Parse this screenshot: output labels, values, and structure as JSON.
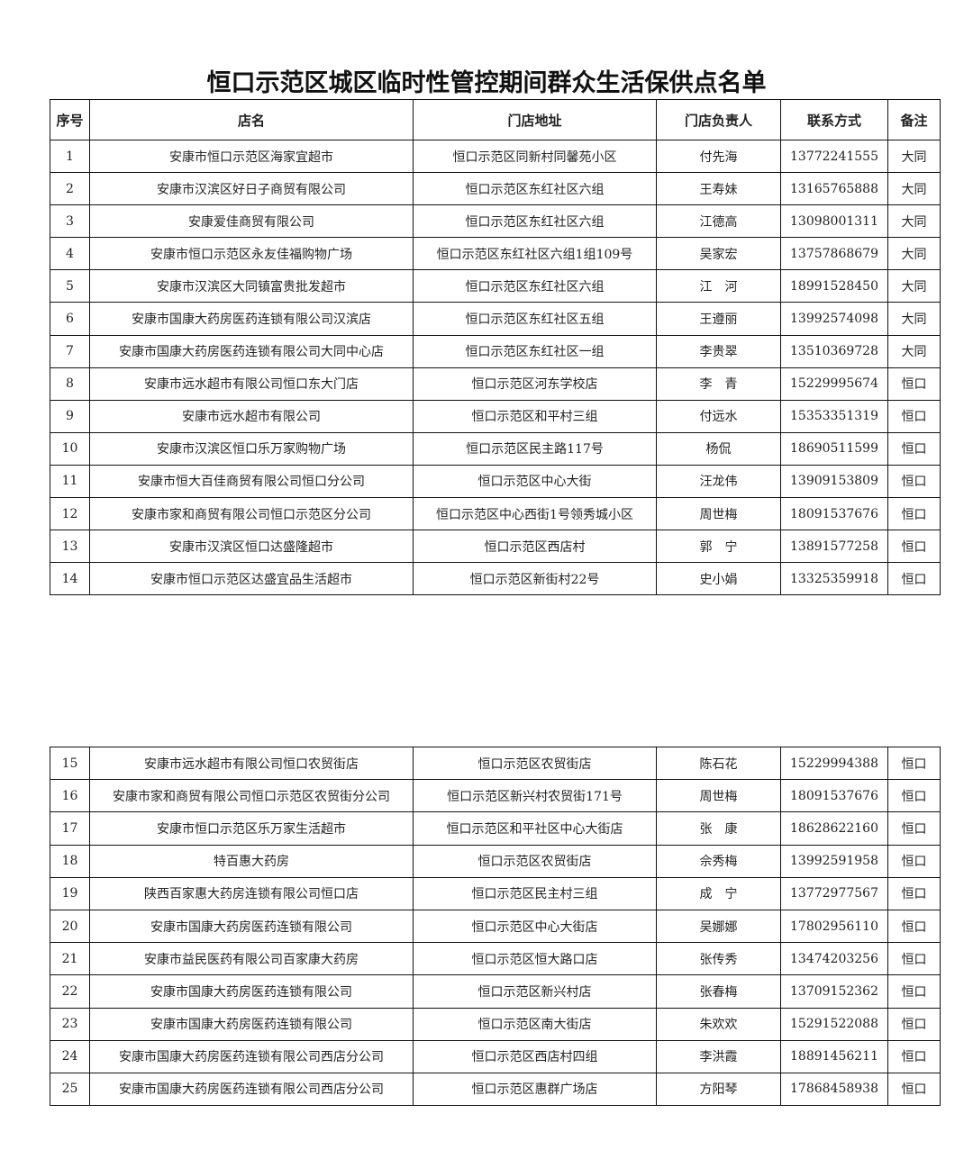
{
  "title": "恒口示范区城区临时性管控期间群众生活保供点名单",
  "header": [
    "序号",
    "店名",
    "门店地址",
    "门店负责人",
    "联系方式",
    "备注"
  ],
  "table1": {
    "rows": [
      [
        1,
        "安康市恒口示范区海家宜超市",
        "恒口示范区同新村同馨苑小区",
        "付先海",
        "13772241555",
        "大同"
      ],
      [
        2,
        "安康市汉滨区好日子商贸有限公司",
        "恒口示范区东红社区六组",
        "王寿妹",
        "13165765888",
        "大同"
      ],
      [
        3,
        "安康爱佳商贸有限公司",
        "恒口示范区东红社区六组",
        "江德高",
        "13098001311",
        "大同"
      ],
      [
        4,
        "安康市恒口示范区永友佳福购物广场",
        "恒口示范区东红社区六组1组109号",
        "吴家宏",
        "13757868679",
        "大同"
      ],
      [
        5,
        "安康市汉滨区大同镇富贵批发超市",
        "恒口示范区东红社区六组",
        "江　河",
        "18991528450",
        "大同"
      ],
      [
        6,
        "安康市国康大药房医药连锁有限公司汉滨店",
        "恒口示范区东红社区五组",
        "王遵丽",
        "13992574098",
        "大同"
      ],
      [
        7,
        "安康市国康大药房医药连锁有限公司大同中心店",
        "恒口示范区东红社区一组",
        "李贵翠",
        "13510369728",
        "大同"
      ],
      [
        8,
        "安康市远水超市有限公司恒口东大门店",
        "恒口示范区河东学校店",
        "李　青",
        "15229995674",
        "恒口"
      ],
      [
        9,
        "安康市远水超市有限公司",
        "恒口示范区和平村三组",
        "付远水",
        "15353351319",
        "恒口"
      ],
      [
        10,
        "安康市汉滨区恒口乐万家购物广场",
        "恒口示范区民主路117号",
        "杨侃",
        "18690511599",
        "恒口"
      ],
      [
        11,
        "安康市恒大百佳商贸有限公司恒口分公司",
        "恒口示范区中心大街",
        "汪龙伟",
        "13909153809",
        "恒口"
      ],
      [
        12,
        "安康市家和商贸有限公司恒口示范区分公司",
        "恒口示范区中心西街1号领秀城小区",
        "周世梅",
        "18091537676",
        "恒口"
      ],
      [
        13,
        "安康市汉滨区恒口达盛隆超市",
        "恒口示范区西店村",
        "郭　宁",
        "13891577258",
        "恒口"
      ],
      [
        14,
        "安康市恒口示范区达盛宜品生活超市",
        "恒口示范区新街村22号",
        "史小娟",
        "13325359918",
        "恒口"
      ]
    ]
  },
  "table2": {
    "rows": [
      [
        15,
        "安康市远水超市有限公司恒口农贸街店",
        "恒口示范区农贸街店",
        "陈石花",
        "15229994388",
        "恒口"
      ],
      [
        16,
        "安康市家和商贸有限公司恒口示范区农贸街分公司",
        "恒口示范区新兴村农贸街171号",
        "周世梅",
        "18091537676",
        "恒口"
      ],
      [
        17,
        "安康市恒口示范区乐万家生活超市",
        "恒口示范区和平社区中心大街店",
        "张　康",
        "18628622160",
        "恒口"
      ],
      [
        18,
        "特百惠大药房",
        "恒口示范区农贸街店",
        "佘秀梅",
        "13992591958",
        "恒口"
      ],
      [
        19,
        "陕西百家惠大药房连锁有限公司恒口店",
        "恒口示范区民主村三组",
        "成　宁",
        "13772977567",
        "恒口"
      ],
      [
        20,
        "安康市国康大药房医药连锁有限公司",
        "恒口示范区中心大街店",
        "吴娜娜",
        "17802956110",
        "恒口"
      ],
      [
        21,
        "安康市益民医药有限公司百家康大药房",
        "恒口示范区恒大路口店",
        "张传秀",
        "13474203256",
        "恒口"
      ],
      [
        22,
        "安康市国康大药房医药连锁有限公司",
        "恒口示范区新兴村店",
        "张春梅",
        "13709152362",
        "恒口"
      ],
      [
        23,
        "安康市国康大药房医药连锁有限公司",
        "恒口示范区南大街店",
        "朱欢欢",
        "15291522088",
        "恒口"
      ],
      [
        24,
        "安康市国康大药房医药连锁有限公司西店分公司",
        "恒口示范区西店村四组",
        "李洪霞",
        "18891456211",
        "恒口"
      ],
      [
        25,
        "安康市国康大药房医药连锁有限公司西店分公司",
        "恒口示范区惠群广场店",
        "方阳琴",
        "17868458938",
        "恒口"
      ]
    ]
  }
}
